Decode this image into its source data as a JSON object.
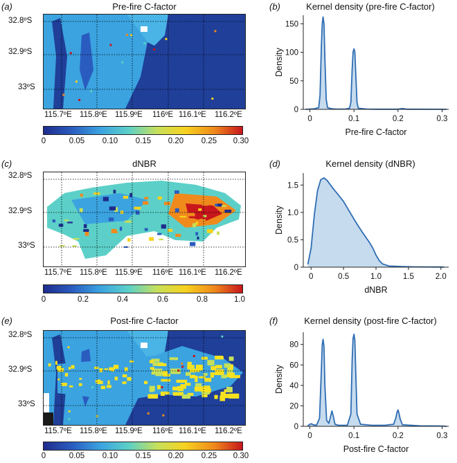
{
  "colors": {
    "map_background": "#1f3f99",
    "kde_line": "#2d6cb3",
    "kde_fill": "#b8d2ea",
    "colormap": [
      "#1e2d8c",
      "#2a5cc0",
      "#3ba3e0",
      "#5cd0c8",
      "#c6e05a",
      "#f7d21f",
      "#f08a1c",
      "#c8161d"
    ]
  },
  "maps": [
    {
      "panel": "(a)",
      "title": "Pre-fire C-factor",
      "lat_labels": [
        "32.8ºS",
        "32.9ºS",
        "33ºS"
      ],
      "lon_labels": [
        "115.7ºE",
        "115.8ºE",
        "115.9ºE",
        "116ºE",
        "116.1ºE",
        "116.2ºE"
      ],
      "colorbar_ticks": [
        "0",
        "0.05",
        "0.10",
        "0.15",
        "0.20",
        "0.25",
        "0.30"
      ]
    },
    {
      "panel": "(c)",
      "title": "dNBR",
      "lat_labels": [
        "32.8ºS",
        "32.9ºS",
        "33ºS"
      ],
      "lon_labels": [
        "115.7ºE",
        "115.8ºE",
        "115.9ºE",
        "116ºE",
        "116.1ºE",
        "116.2ºE"
      ],
      "colorbar_ticks": [
        "0",
        "0.2",
        "0.4",
        "0.6",
        "0.8",
        "1.0"
      ]
    },
    {
      "panel": "(e)",
      "title": "Post-fire C-factor",
      "lat_labels": [
        "32.8ºS",
        "32.9ºS",
        "33ºS"
      ],
      "lon_labels": [
        "115.7ºE",
        "115.8ºE",
        "115.9ºE",
        "116ºE",
        "116.1ºE",
        "116.2ºE"
      ],
      "colorbar_ticks": [
        "0",
        "0.05",
        "0.10",
        "0.15",
        "0.20",
        "0.25",
        "0.30"
      ]
    }
  ],
  "chart_data": [
    {
      "type": "area",
      "panel": "(b)",
      "title": "Kernel density (pre-fire C-factor)",
      "xlabel": "Pre-fire C-factor",
      "ylabel": "Density",
      "xlim": [
        -0.015,
        0.315
      ],
      "ylim": [
        0,
        165
      ],
      "xticks": [
        0,
        0.1,
        0.2,
        0.3
      ],
      "xtick_labels": [
        "0",
        "0.1",
        "0.2",
        "0.3"
      ],
      "yticks": [
        0,
        50,
        100,
        150
      ],
      "ytick_labels": [
        "0",
        "50",
        "100",
        "150"
      ],
      "x": [
        -0.01,
        0.0,
        0.01,
        0.02,
        0.023,
        0.026,
        0.028,
        0.03,
        0.032,
        0.034,
        0.037,
        0.04,
        0.05,
        0.06,
        0.08,
        0.09,
        0.093,
        0.096,
        0.098,
        0.1,
        0.102,
        0.104,
        0.107,
        0.11,
        0.13,
        0.15,
        0.2,
        0.21,
        0.22,
        0.25,
        0.3,
        0.31
      ],
      "y": [
        0,
        0.5,
        1,
        3,
        25,
        110,
        150,
        162,
        150,
        90,
        18,
        3,
        1,
        0.5,
        0.5,
        2,
        12,
        70,
        100,
        106,
        100,
        65,
        12,
        2,
        0.5,
        0.3,
        0.3,
        1.5,
        0.3,
        0.2,
        0.1,
        0
      ]
    },
    {
      "type": "area",
      "panel": "(d)",
      "title": "Kernel density (dNBR)",
      "xlabel": "dNBR",
      "ylabel": "Density",
      "xlim": [
        -0.12,
        2.12
      ],
      "ylim": [
        0,
        1.72
      ],
      "xticks": [
        0,
        0.5,
        1.0,
        1.5,
        2.0
      ],
      "xtick_labels": [
        "0",
        "0.5",
        "1.0",
        "1.5",
        "2.0"
      ],
      "yticks": [
        0,
        0.5,
        1.0,
        1.5
      ],
      "ytick_labels": [
        "0",
        "0.5",
        "1.0",
        "1.5"
      ],
      "x": [
        -0.05,
        0.0,
        0.05,
        0.1,
        0.15,
        0.2,
        0.25,
        0.3,
        0.35,
        0.4,
        0.5,
        0.6,
        0.7,
        0.8,
        0.9,
        0.95,
        1.0,
        1.05,
        1.1,
        1.2,
        1.4,
        1.6,
        2.0,
        2.05
      ],
      "y": [
        0.05,
        0.35,
        0.95,
        1.4,
        1.6,
        1.63,
        1.58,
        1.5,
        1.42,
        1.35,
        1.2,
        1.0,
        0.8,
        0.62,
        0.45,
        0.35,
        0.22,
        0.12,
        0.06,
        0.02,
        0.01,
        0.005,
        0.002,
        0
      ]
    },
    {
      "type": "area",
      "panel": "(f)",
      "title": "Kernel density (post-fire C-factor)",
      "xlabel": "Post-fire C-factor",
      "ylabel": "Density",
      "xlim": [
        -0.015,
        0.315
      ],
      "ylim": [
        0,
        92
      ],
      "xticks": [
        0,
        0.1,
        0.2,
        0.3
      ],
      "xtick_labels": [
        "0",
        "0.1",
        "0.2",
        "0.3"
      ],
      "yticks": [
        0,
        20,
        40,
        60,
        80
      ],
      "ytick_labels": [
        "0",
        "20",
        "40",
        "60",
        "80"
      ],
      "x": [
        -0.005,
        0.0,
        0.003,
        0.008,
        0.015,
        0.022,
        0.026,
        0.028,
        0.03,
        0.032,
        0.034,
        0.038,
        0.043,
        0.047,
        0.05,
        0.053,
        0.057,
        0.065,
        0.085,
        0.093,
        0.096,
        0.098,
        0.1,
        0.102,
        0.104,
        0.107,
        0.115,
        0.14,
        0.17,
        0.19,
        0.195,
        0.198,
        0.2,
        0.202,
        0.205,
        0.21,
        0.25,
        0.3,
        0.31
      ],
      "y": [
        0.5,
        2,
        2.5,
        1.5,
        1,
        8,
        55,
        80,
        85,
        78,
        40,
        6,
        3,
        10,
        15,
        10,
        2,
        1,
        1,
        12,
        65,
        86,
        90,
        84,
        55,
        12,
        2,
        1,
        1,
        2,
        8,
        14,
        16,
        13,
        7,
        1.5,
        0.5,
        0.3,
        0
      ]
    }
  ]
}
